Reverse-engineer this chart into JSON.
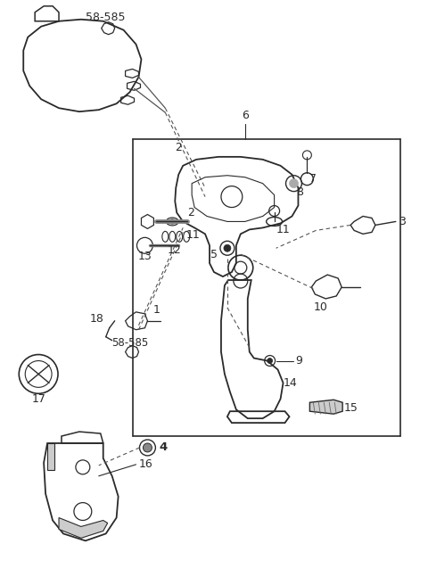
{
  "bg_color": "#ffffff",
  "line_color": "#2a2a2a",
  "fig_width": 4.8,
  "fig_height": 6.47,
  "dpi": 100
}
